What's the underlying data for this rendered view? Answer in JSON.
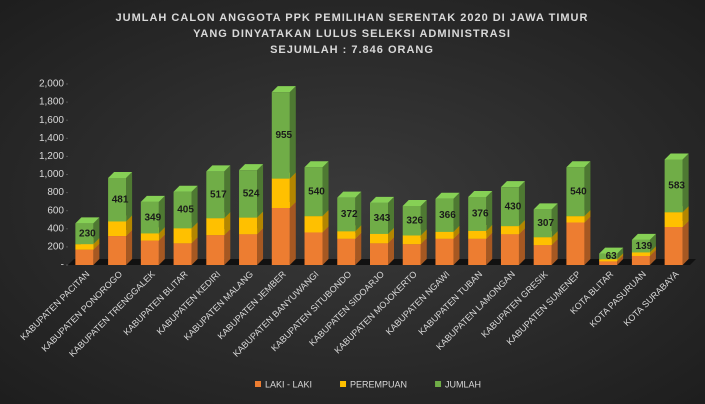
{
  "chart_data": {
    "type": "bar3d-stacked",
    "title": [
      "JUMLAH  CALON ANGGOTA  PPK PEMILIHAN  SERENTAK  2020 DI JAWA TIMUR",
      "YANG DINYATAKAN  LULUS SELEKSI  ADMINISTRASI",
      "SEJUMLAH  : 7.846 ORANG"
    ],
    "categories": [
      "KABUPATEN PACITAN",
      "KABUPATEN PONOROGO",
      "KABUPATEN TRENGGALEK",
      "KABUPATEN BLITAR",
      "KABUPATEN KEDIRI",
      "KABUPATEN MALANG",
      "KABUPATEN JEMBER",
      "KABUPATEN BANYUWANGI",
      "KABUPATEN SITUBONDO",
      "KABUPATEN SIDOARJO",
      "KABUPATEN MOJOKERTO",
      "KABUPATEN NGAWI",
      "KABUPATEN TUBAN",
      "KABUPATEN LAMONGAN",
      "KABUPATEN GRESIK",
      "KABUPATEN SUMENEP",
      "KOTA BLITAR",
      "KOTA PASURUAN",
      "KOTA SURABAYA"
    ],
    "series": [
      {
        "name": "LAKI - LAKI",
        "color": "#ed7d31",
        "values": [
          170,
          320,
          270,
          240,
          330,
          340,
          630,
          360,
          290,
          240,
          230,
          290,
          290,
          340,
          220,
          470,
          40,
          100,
          420
        ]
      },
      {
        "name": "PEREMPUAN",
        "color": "#ffc000",
        "values": [
          60,
          161,
          79,
          165,
          187,
          184,
          325,
          180,
          82,
          103,
          96,
          76,
          86,
          90,
          87,
          70,
          23,
          39,
          163
        ]
      },
      {
        "name": "JUMLAH",
        "color": "#70ad47",
        "values": [
          230,
          481,
          349,
          405,
          517,
          524,
          955,
          540,
          372,
          343,
          326,
          366,
          376,
          430,
          307,
          540,
          63,
          139,
          583
        ],
        "data_labels": true
      }
    ],
    "ylim": [
      0,
      2000
    ],
    "yticks": [
      {
        "value": 0,
        "label": "-"
      },
      200,
      400,
      600,
      800,
      {
        "value": 1000,
        "label": "1,000"
      },
      {
        "value": 1200,
        "label": "1,200"
      },
      {
        "value": 1400,
        "label": "1,400"
      },
      {
        "value": 1600,
        "label": "1,600"
      },
      {
        "value": 1800,
        "label": "1,800"
      },
      {
        "value": 2000,
        "label": "2,000"
      }
    ],
    "legend": "bottom"
  }
}
